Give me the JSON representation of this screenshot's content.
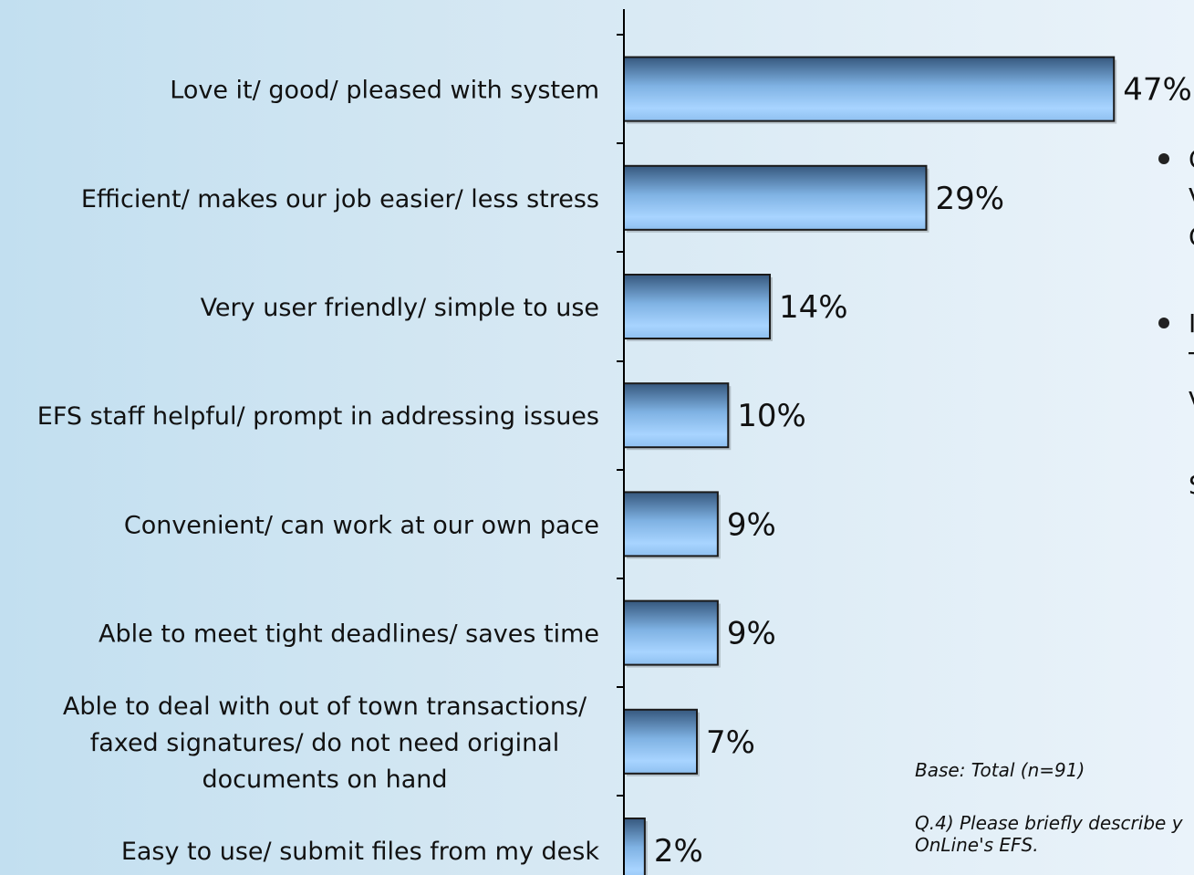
{
  "chart_data": {
    "type": "bar",
    "orientation": "horizontal",
    "categories": [
      "Love it/ good/ pleased with system",
      "Efficient/ makes our job easier/ less stress",
      "Very user friendly/ simple to use",
      "EFS staff helpful/ prompt in addressing issues",
      "Convenient/ can work at our own pace",
      "Able to meet tight deadlines/ saves time",
      "Able to deal with out of town transactions/ faxed signatures/ do not need original documents on hand",
      "Easy to use/ submit files from my desk"
    ],
    "category_lines": [
      [
        "Love it/ good/ pleased with system"
      ],
      [
        "Efficient/ makes our job easier/ less stress"
      ],
      [
        "Very user friendly/ simple to use"
      ],
      [
        "EFS staff helpful/ prompt in addressing issues"
      ],
      [
        "Convenient/ can work at our own pace"
      ],
      [
        "Able to meet tight deadlines/ saves time"
      ],
      [
        "Able to deal with out of town transactions/",
        "faxed signatures/ do not need original",
        "documents on hand"
      ],
      [
        "Easy to use/ submit files from my desk"
      ]
    ],
    "values": [
      47,
      29,
      14,
      10,
      9,
      9,
      7,
      2
    ],
    "value_labels": [
      "47%",
      "29%",
      "14%",
      "10%",
      "9%",
      "9%",
      "7%",
      "2%"
    ],
    "xlim": [
      0,
      50
    ],
    "grid": false,
    "colors": {
      "bar_light": "#a8d4ff",
      "bar_dark": "#3d5f86",
      "axis": "#000000"
    }
  },
  "notes": {
    "base": "Base:   Total (n=91)",
    "question_line1": "Q.4) Please briefly describe y",
    "question_line2": "OnLine's EFS."
  },
  "side_text": {
    "bullet1_fragments": [
      "C",
      "V",
      "C"
    ],
    "bullet2_fragments": [
      "I",
      "T",
      "V",
      "S"
    ]
  }
}
